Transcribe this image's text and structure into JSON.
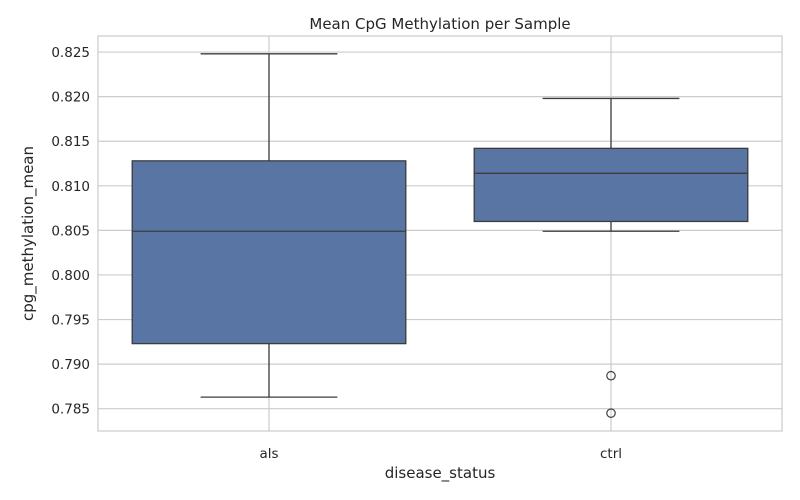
{
  "chart_data": {
    "type": "box",
    "title": "Mean CpG Methylation per Sample",
    "xlabel": "disease_status",
    "ylabel": "cpg_methylation_mean",
    "ylim": [
      0.7825,
      0.8268
    ],
    "yticks": [
      "0.785",
      "0.790",
      "0.795",
      "0.800",
      "0.805",
      "0.810",
      "0.815",
      "0.820",
      "0.825"
    ],
    "grid": true,
    "box_color": "#5875a4",
    "line_color": "#3d3d3d",
    "categories": [
      "als",
      "ctrl"
    ],
    "boxes": [
      {
        "name": "als",
        "whisker_low": 0.7863,
        "q1": 0.7923,
        "median": 0.8049,
        "q3": 0.8128,
        "whisker_high": 0.8248,
        "outliers": []
      },
      {
        "name": "ctrl",
        "whisker_low": 0.8049,
        "q1": 0.806,
        "median": 0.8114,
        "q3": 0.8142,
        "whisker_high": 0.8198,
        "outliers": [
          0.7887,
          0.7845
        ]
      }
    ]
  }
}
